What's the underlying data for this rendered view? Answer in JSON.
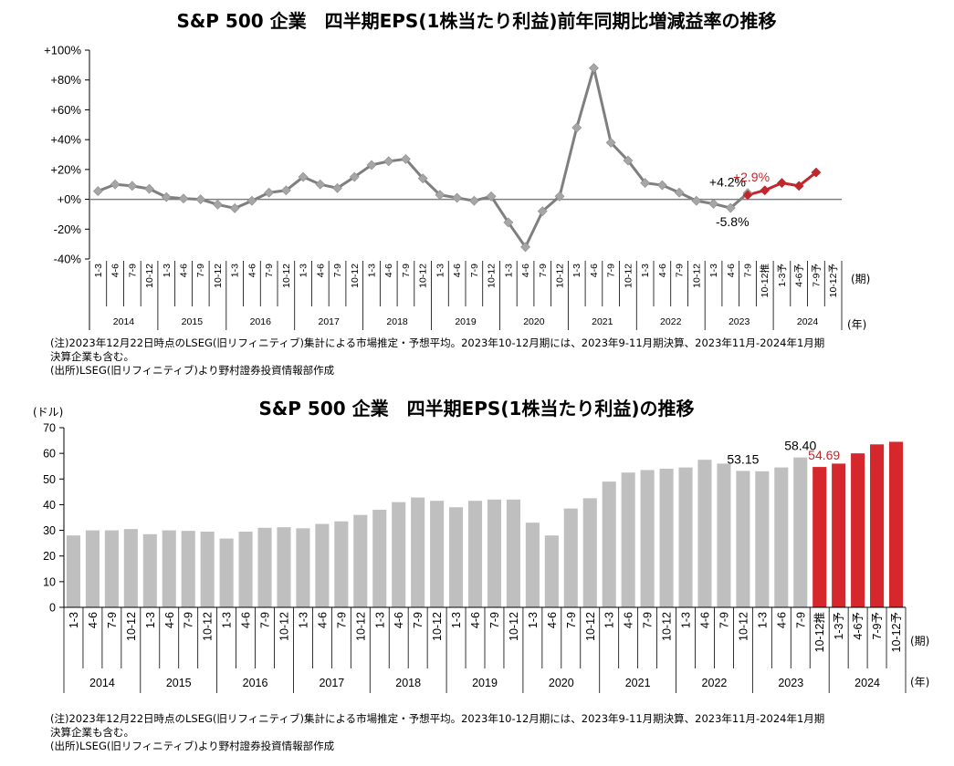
{
  "chart_data": [
    {
      "type": "line",
      "title": "S&P 500 企業　四半期EPS(1株当たり利益)前年同期比増減益率の推移",
      "ylim": [
        -40,
        100
      ],
      "yticks": [
        -40,
        -20,
        0,
        20,
        40,
        60,
        80,
        100
      ],
      "ytick_labels": [
        "-40%",
        "-20%",
        "+0%",
        "+20%",
        "+40%",
        "+60%",
        "+80%",
        "+100%"
      ],
      "x_quarter_labels": [
        "1-3",
        "4-6",
        "7-9",
        "10-12",
        "1-3",
        "4-6",
        "7-9",
        "10-12",
        "1-3",
        "4-6",
        "7-9",
        "10-12",
        "1-3",
        "4-6",
        "7-9",
        "10-12",
        "1-3",
        "4-6",
        "7-9",
        "10-12",
        "1-3",
        "4-6",
        "7-9",
        "10-12",
        "1-3",
        "4-6",
        "7-9",
        "10-12",
        "1-3",
        "4-6",
        "7-9",
        "10-12",
        "1-3",
        "4-6",
        "7-9",
        "10-12",
        "1-3",
        "4-6",
        "7-9",
        "10-12推",
        "1-3予",
        "4-6予",
        "7-9予",
        "10-12予"
      ],
      "years": [
        "2014",
        "2015",
        "2016",
        "2017",
        "2018",
        "2019",
        "2020",
        "2021",
        "2022",
        "2023",
        "2024"
      ],
      "x_unit": "(期)",
      "year_unit": "(年)",
      "grid": false,
      "series": [
        {
          "color": "#7f7f7f",
          "marker_color": "#a6a6a6",
          "values": [
            5.5,
            10,
            9,
            7,
            1.5,
            0.5,
            0,
            -3.5,
            -6,
            -1,
            4.5,
            6,
            15,
            10,
            7.5,
            15,
            23,
            25.5,
            27,
            14,
            3,
            1,
            -1,
            2,
            -15.5,
            -32,
            -8,
            2,
            48,
            88,
            38,
            26,
            11,
            9.5,
            4.5,
            -1,
            -3,
            -5.8,
            4.2
          ]
        },
        {
          "color": "#c0282c",
          "marker_color": "#c0282c",
          "values": [
            2.9,
            6,
            11,
            9,
            18
          ]
        }
      ],
      "data_labels": [
        {
          "text": "+4.2%",
          "color": "#000000"
        },
        {
          "text": "+2.9%",
          "color": "#c0282c"
        },
        {
          "text": "-5.8%",
          "color": "#000000"
        }
      ]
    },
    {
      "type": "bar",
      "title": "S&P 500 企業　四半期EPS(1株当たり利益)の推移",
      "ylabel": "(ドル)",
      "ylim": [
        0,
        70
      ],
      "yticks": [
        0,
        10,
        20,
        30,
        40,
        50,
        60,
        70
      ],
      "x_quarter_labels": [
        "1-3",
        "4-6",
        "7-9",
        "10-12",
        "1-3",
        "4-6",
        "7-9",
        "10-12",
        "1-3",
        "4-6",
        "7-9",
        "10-12",
        "1-3",
        "4-6",
        "7-9",
        "10-12",
        "1-3",
        "4-6",
        "7-9",
        "10-12",
        "1-3",
        "4-6",
        "7-9",
        "10-12",
        "1-3",
        "4-6",
        "7-9",
        "10-12",
        "1-3",
        "4-6",
        "7-9",
        "10-12",
        "1-3",
        "4-6",
        "7-9",
        "10-12",
        "1-3",
        "4-6",
        "7-9",
        "10-12推",
        "1-3予",
        "4-6予",
        "7-9予",
        "10-12予"
      ],
      "years": [
        "2014",
        "2015",
        "2016",
        "2017",
        "2018",
        "2019",
        "2020",
        "2021",
        "2022",
        "2023",
        "2024"
      ],
      "x_unit": "(期)",
      "year_unit": "(年)",
      "grid": false,
      "series": [
        {
          "color": "#bfbfbf",
          "values": [
            28.0,
            30.0,
            30.0,
            30.5,
            28.5,
            30.0,
            29.8,
            29.5,
            26.8,
            29.5,
            31.0,
            31.2,
            30.8,
            32.5,
            33.5,
            36.0,
            38.0,
            41.0,
            42.8,
            41.5,
            39.0,
            41.5,
            42.0,
            42.0,
            33.0,
            28.0,
            38.5,
            42.5,
            49.0,
            52.5,
            53.5,
            54.0,
            54.5,
            57.5,
            56.0,
            53.15,
            53.0,
            54.5,
            58.4
          ]
        },
        {
          "color": "#d6282c",
          "values": [
            54.69,
            56.0,
            60.0,
            63.5,
            64.5
          ]
        }
      ],
      "data_labels": [
        {
          "text": "53.15",
          "color": "#000000"
        },
        {
          "text": "58.40",
          "color": "#000000"
        },
        {
          "text": "54.69",
          "color": "#c0282c"
        }
      ]
    }
  ],
  "notes_top": [
    "(注)2023年12月22日時点のLSEG(旧リフィニティブ)集計による市場推定・予想平均。2023年10-12月期には、2023年9-11月期決算、2023年11月-2024年1月期",
    "決算企業も含む。",
    "(出所)LSEG(旧リフィニティブ)より野村證券投資情報部作成"
  ],
  "notes_bottom": [
    "(注)2023年12月22日時点のLSEG(旧リフィニティブ)集計による市場推定・予想平均。2023年10-12月期には、2023年9-11月期決算、2023年11月-2024年1月期",
    "決算企業も含む。",
    "(出所)LSEG(旧リフィニティブ)より野村證券投資情報部作成"
  ]
}
